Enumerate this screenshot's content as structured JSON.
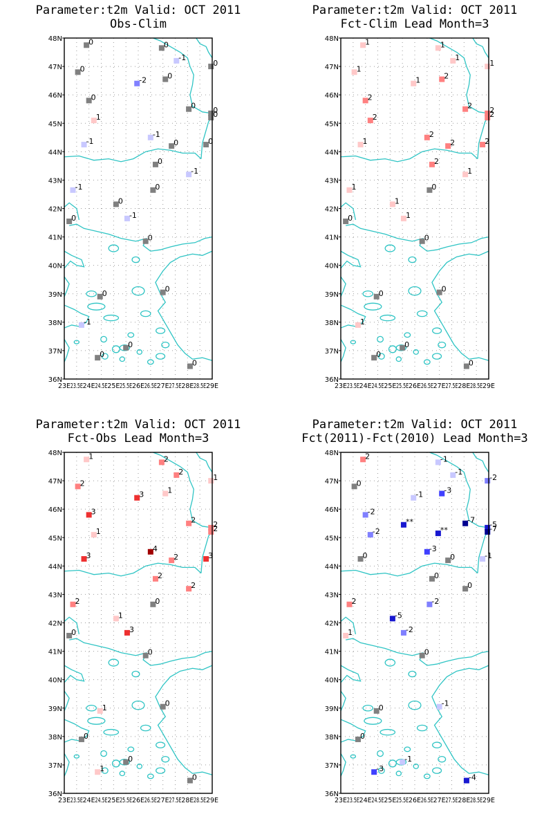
{
  "x_ticks": [
    "23E",
    "23.5E",
    "24E",
    "24.5E",
    "25E",
    "25.5E",
    "26E",
    "26.5E",
    "27E",
    "27.5E",
    "28E",
    "28.5E",
    "29E"
  ],
  "y_ticks": [
    "36N",
    "37N",
    "38N",
    "39N",
    "40N",
    "41N",
    "42N",
    "43N",
    "44N",
    "45N",
    "46N",
    "47N",
    "48N"
  ],
  "colors": {
    "coast": "#2ec4c4",
    "zero": "#808080",
    "neg1": "#c8c8ff",
    "neg2": "#8080ff",
    "neg3": "#4040ff",
    "neg5": "#1818d0",
    "neg7": "#000090",
    "pos1": "#ffc8c8",
    "pos2": "#ff8080",
    "pos3": "#ee3030",
    "pos4": "#a00000"
  },
  "panels": [
    {
      "line1": "Parameter:t2m Valid: OCT 2011",
      "line2": "Obs-Clim"
    },
    {
      "line1": "Parameter:t2m Valid: OCT 2011",
      "line2": "Fct-Clim Lead Month=3"
    },
    {
      "line1": "Parameter:t2m Valid: OCT 2011",
      "line2": "Fct-Obs Lead Month=3"
    },
    {
      "line1": "Parameter:t2m Valid: OCT 2011",
      "line2": "Fct(2011)-Fct(2010) Lead Month=3"
    }
  ],
  "map_data": {
    "stations": [
      {
        "lon": 23.9,
        "lat": 47.75
      },
      {
        "lon": 25.95,
        "lat": 46.4
      },
      {
        "lon": 26.95,
        "lat": 47.65
      },
      {
        "lon": 27.55,
        "lat": 47.2
      },
      {
        "lon": 28.95,
        "lat": 47.0
      },
      {
        "lon": 23.55,
        "lat": 46.8
      },
      {
        "lon": 27.1,
        "lat": 46.55
      },
      {
        "lon": 24.0,
        "lat": 45.8
      },
      {
        "lon": 28.05,
        "lat": 45.5
      },
      {
        "lon": 28.95,
        "lat": 45.35
      },
      {
        "lon": 28.95,
        "lat": 45.2
      },
      {
        "lon": 24.2,
        "lat": 45.1
      },
      {
        "lon": 23.8,
        "lat": 44.25
      },
      {
        "lon": 26.5,
        "lat": 44.5
      },
      {
        "lon": 27.35,
        "lat": 44.2
      },
      {
        "lon": 28.75,
        "lat": 44.25
      },
      {
        "lon": 26.7,
        "lat": 43.55
      },
      {
        "lon": 28.05,
        "lat": 43.2
      },
      {
        "lon": 23.35,
        "lat": 42.65
      },
      {
        "lon": 26.6,
        "lat": 42.65
      },
      {
        "lon": 25.1,
        "lat": 42.15
      },
      {
        "lon": 25.55,
        "lat": 41.65
      },
      {
        "lon": 23.2,
        "lat": 41.55
      },
      {
        "lon": 26.3,
        "lat": 40.85
      },
      {
        "lon": 24.45,
        "lat": 38.9
      },
      {
        "lon": 27.0,
        "lat": 39.05
      },
      {
        "lon": 23.7,
        "lat": 37.9
      },
      {
        "lon": 25.5,
        "lat": 37.1
      },
      {
        "lon": 24.35,
        "lat": 36.75
      },
      {
        "lon": 28.1,
        "lat": 36.45
      }
    ],
    "values": [
      [
        "0",
        "-2",
        "0",
        "-1",
        "0",
        "0",
        "0",
        "0",
        "0",
        "0",
        "0",
        "1",
        "-1",
        "-1",
        "0",
        "0",
        "0",
        "-1",
        "-1",
        "0",
        "0",
        "-1",
        "0",
        "0",
        "0",
        "0",
        "-1",
        "0",
        "0",
        "0"
      ],
      [
        "1",
        "1",
        "1",
        "1",
        "1",
        "1",
        "2",
        "2",
        "2",
        "2",
        "2",
        "2",
        "1",
        "2",
        "2",
        "2",
        "2",
        "1",
        "1",
        "0",
        "1",
        "1",
        "0",
        "0",
        "0",
        "0",
        "1",
        "0",
        "0",
        "0"
      ],
      [
        "1",
        "3",
        "2",
        "2",
        "1",
        "2",
        "1",
        "3",
        "2",
        "2",
        "2",
        "1",
        "3",
        "4",
        "2",
        "3",
        "2",
        "2",
        "2",
        "0",
        "1",
        "3",
        "0",
        "0",
        "1",
        "0",
        "0",
        "0",
        "1",
        "0"
      ],
      [
        "2",
        "-1",
        "-1",
        "-1",
        "-2",
        "0",
        "-3",
        "-2",
        "-7",
        "-5",
        "-7",
        "-2",
        "0",
        "-3",
        "0",
        "-1",
        "0",
        "0",
        "2",
        "-2",
        "-5",
        "-2",
        "1",
        "0",
        "0",
        "-1",
        "0",
        "-1",
        "-3",
        "-4"
      ]
    ],
    "extra_labels": [
      {
        "panel": 3,
        "lon": 25.55,
        "lat": 45.45,
        "text": "**",
        "value": "-5"
      },
      {
        "panel": 3,
        "lon": 26.95,
        "lat": 45.15,
        "text": "**",
        "value": "-5"
      }
    ]
  }
}
